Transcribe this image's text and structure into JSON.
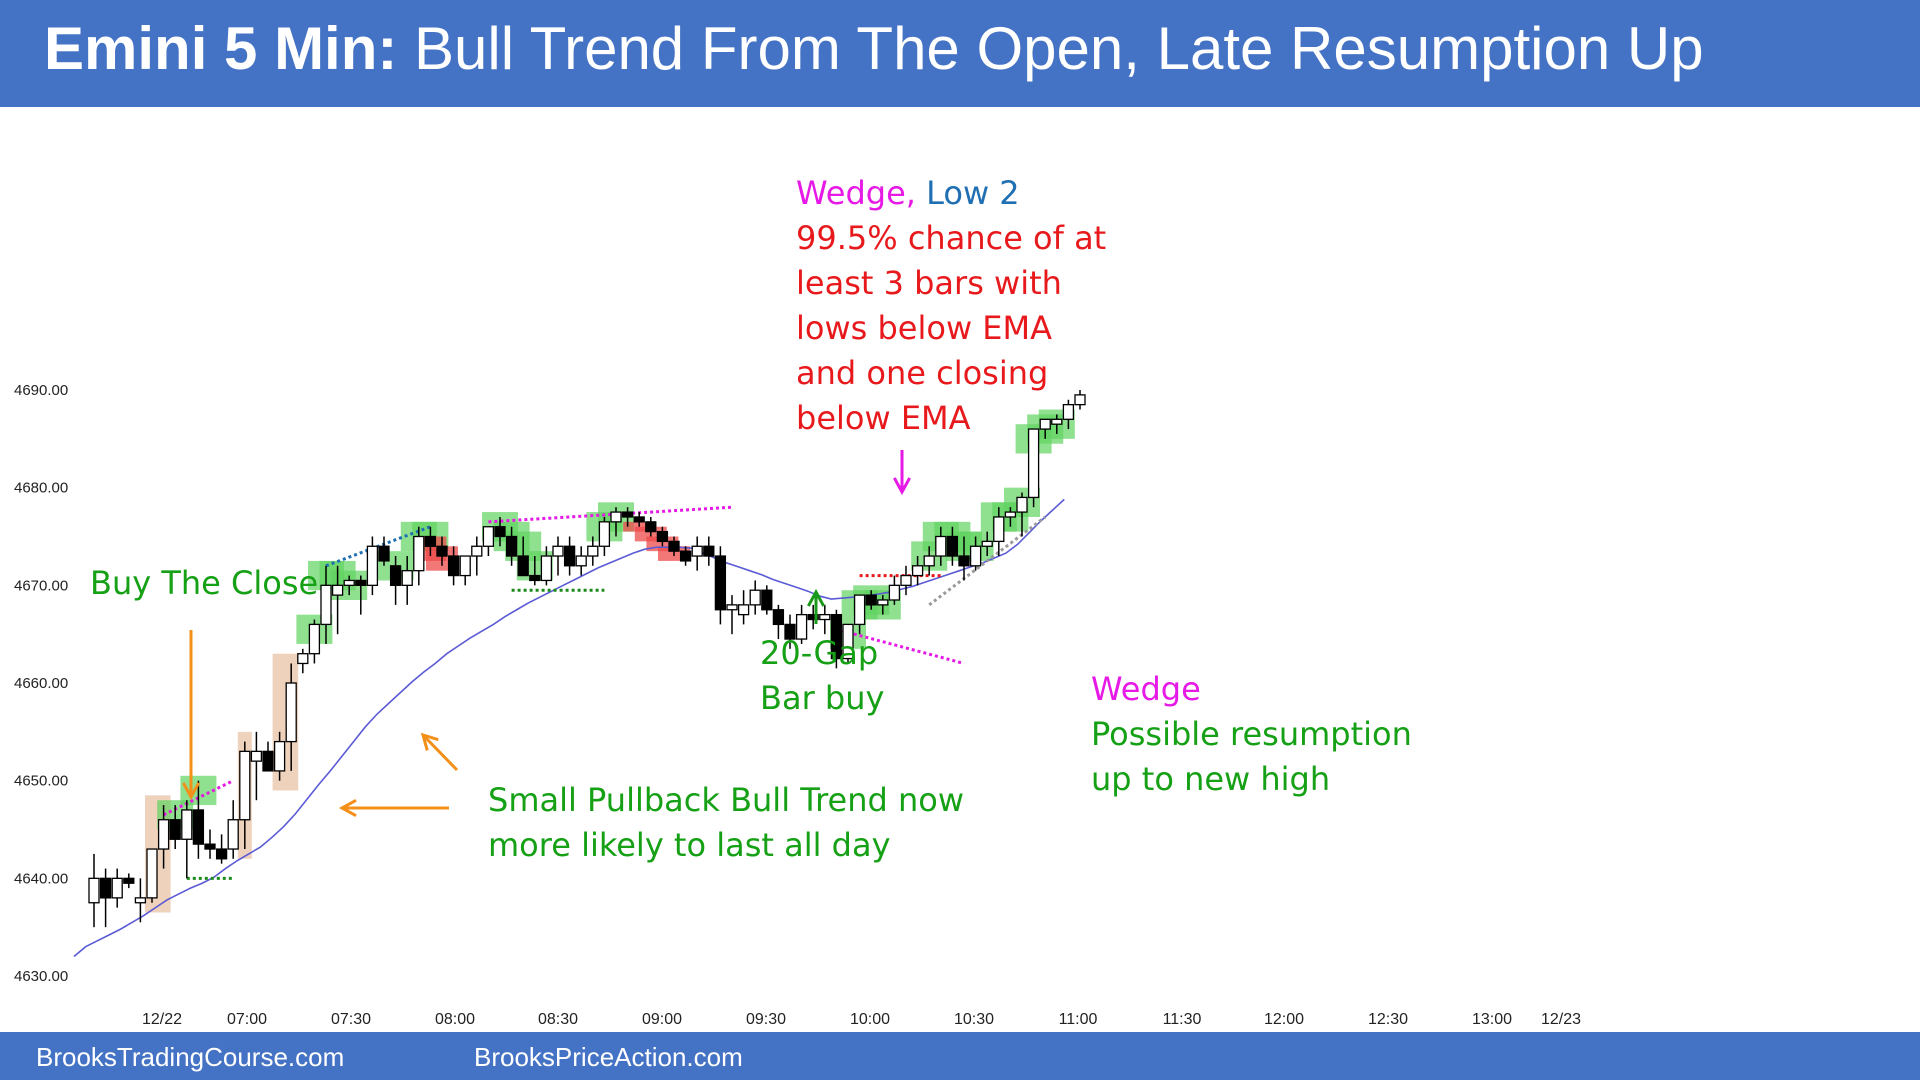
{
  "header": {
    "title_bold": "Emini 5 Min:",
    "title_rest": " Bull Trend From The Open, Late Resumption Up",
    "bg_color": "#4472c4"
  },
  "footer": {
    "left": "BrooksTradingCourse.com",
    "right": "BrooksPriceAction.com"
  },
  "annotations": {
    "buy_close": "Buy The Close",
    "wedge_top_a": "Wedge,",
    "wedge_top_b": "Low 2",
    "prob_lines": [
      "99.5% chance of at",
      "least 3 bars with",
      "lows below EMA",
      "and one closing",
      "below EMA"
    ],
    "gap_lines": [
      "20-Gap",
      "Bar buy"
    ],
    "spbt_lines": [
      "Small Pullback Bull Trend now",
      "more likely to last all day"
    ],
    "wedge_low": "Wedge",
    "resume_lines": [
      "Possible  resumption",
      "up to new high"
    ]
  },
  "chart_data": {
    "type": "candlestick",
    "y_ticks": [
      "4630.00",
      "4640.00",
      "4650.00",
      "4660.00",
      "4670.00",
      "4680.00",
      "4690.00"
    ],
    "x_ticks": [
      "12/22",
      "07:00",
      "07:30",
      "08:00",
      "08:30",
      "09:00",
      "09:30",
      "10:00",
      "10:30",
      "11:00",
      "11:30",
      "12:00",
      "12:30",
      "13:00",
      "12/23"
    ],
    "ylim": [
      4630,
      4690
    ],
    "bars": [
      {
        "o": 4637.5,
        "h": 4642.5,
        "l": 4635,
        "c": 4640
      },
      {
        "o": 4640,
        "h": 4641,
        "l": 4635,
        "c": 4638
      },
      {
        "o": 4638,
        "h": 4641,
        "l": 4637,
        "c": 4640
      },
      {
        "o": 4640,
        "h": 4640.5,
        "l": 4639,
        "c": 4639.5
      },
      {
        "o": 4637.5,
        "h": 4640,
        "l": 4635.5,
        "c": 4638
      },
      {
        "o": 4638,
        "h": 4643,
        "l": 4637.5,
        "c": 4643
      },
      {
        "o": 4643,
        "h": 4647.5,
        "l": 4641,
        "c": 4646
      },
      {
        "o": 4646,
        "h": 4647.5,
        "l": 4643,
        "c": 4644
      },
      {
        "o": 4644,
        "h": 4648,
        "l": 4640,
        "c": 4647
      },
      {
        "o": 4647,
        "h": 4650,
        "l": 4642,
        "c": 4643.5
      },
      {
        "o": 4643.5,
        "h": 4645,
        "l": 4642,
        "c": 4643
      },
      {
        "o": 4643,
        "h": 4644.5,
        "l": 4641.5,
        "c": 4642
      },
      {
        "o": 4643,
        "h": 4648,
        "l": 4642,
        "c": 4646
      },
      {
        "o": 4646,
        "h": 4654,
        "l": 4643,
        "c": 4653
      },
      {
        "o": 4652,
        "h": 4655,
        "l": 4648,
        "c": 4653
      },
      {
        "o": 4653,
        "h": 4654,
        "l": 4651,
        "c": 4651
      },
      {
        "o": 4651,
        "h": 4655,
        "l": 4650,
        "c": 4654
      },
      {
        "o": 4654,
        "h": 4662,
        "l": 4651,
        "c": 4660
      },
      {
        "o": 4662,
        "h": 4663.5,
        "l": 4661,
        "c": 4663
      },
      {
        "o": 4663,
        "h": 4666.5,
        "l": 4662,
        "c": 4666
      },
      {
        "o": 4666,
        "h": 4672,
        "l": 4664,
        "c": 4670
      },
      {
        "o": 4669,
        "h": 4672,
        "l": 4665,
        "c": 4670
      },
      {
        "o": 4670,
        "h": 4671,
        "l": 4669,
        "c": 4670.5
      },
      {
        "o": 4670.5,
        "h": 4671,
        "l": 4667,
        "c": 4670
      },
      {
        "o": 4670,
        "h": 4675,
        "l": 4669,
        "c": 4674
      },
      {
        "o": 4674,
        "h": 4675,
        "l": 4672,
        "c": 4672.5
      },
      {
        "o": 4672,
        "h": 4673,
        "l": 4668,
        "c": 4670
      },
      {
        "o": 4670,
        "h": 4673,
        "l": 4668,
        "c": 4671.5
      },
      {
        "o": 4671.5,
        "h": 4676,
        "l": 4670,
        "c": 4675
      },
      {
        "o": 4675,
        "h": 4676,
        "l": 4673,
        "c": 4674
      },
      {
        "o": 4674,
        "h": 4675,
        "l": 4672,
        "c": 4673
      },
      {
        "o": 4673,
        "h": 4674,
        "l": 4670,
        "c": 4671
      },
      {
        "o": 4671,
        "h": 4673,
        "l": 4670,
        "c": 4673
      },
      {
        "o": 4673,
        "h": 4675,
        "l": 4671,
        "c": 4674
      },
      {
        "o": 4674,
        "h": 4676,
        "l": 4673,
        "c": 4676
      },
      {
        "o": 4676,
        "h": 4677,
        "l": 4674,
        "c": 4675
      },
      {
        "o": 4675,
        "h": 4676,
        "l": 4672,
        "c": 4673
      },
      {
        "o": 4673,
        "h": 4675,
        "l": 4671,
        "c": 4671
      },
      {
        "o": 4671,
        "h": 4673,
        "l": 4670,
        "c": 4670.5
      },
      {
        "o": 4670.5,
        "h": 4674,
        "l": 4670,
        "c": 4673
      },
      {
        "o": 4673,
        "h": 4675,
        "l": 4671,
        "c": 4674
      },
      {
        "o": 4674,
        "h": 4675,
        "l": 4671,
        "c": 4672
      },
      {
        "o": 4672,
        "h": 4674,
        "l": 4671,
        "c": 4673
      },
      {
        "o": 4673,
        "h": 4675,
        "l": 4672,
        "c": 4674
      },
      {
        "o": 4674,
        "h": 4677,
        "l": 4673,
        "c": 4676.5
      },
      {
        "o": 4676.5,
        "h": 4678,
        "l": 4675,
        "c": 4677.5
      },
      {
        "o": 4677.5,
        "h": 4678,
        "l": 4676,
        "c": 4677
      },
      {
        "o": 4677,
        "h": 4677.5,
        "l": 4676,
        "c": 4676.5
      },
      {
        "o": 4676.5,
        "h": 4677,
        "l": 4675,
        "c": 4675.5
      },
      {
        "o": 4675.5,
        "h": 4676,
        "l": 4674,
        "c": 4674.5
      },
      {
        "o": 4674.5,
        "h": 4675,
        "l": 4673,
        "c": 4673.5
      },
      {
        "o": 4673.5,
        "h": 4674,
        "l": 4672,
        "c": 4672.5
      },
      {
        "o": 4673,
        "h": 4675,
        "l": 4671.5,
        "c": 4674
      },
      {
        "o": 4674,
        "h": 4675,
        "l": 4672,
        "c": 4673
      },
      {
        "o": 4673,
        "h": 4674,
        "l": 4666,
        "c": 4667.5
      },
      {
        "o": 4667.5,
        "h": 4669,
        "l": 4665,
        "c": 4668
      },
      {
        "o": 4667,
        "h": 4669.5,
        "l": 4666,
        "c": 4668
      },
      {
        "o": 4668,
        "h": 4670.5,
        "l": 4667,
        "c": 4669.5
      },
      {
        "o": 4669.5,
        "h": 4670,
        "l": 4667,
        "c": 4667.5
      },
      {
        "o": 4667.5,
        "h": 4668,
        "l": 4664.5,
        "c": 4666
      },
      {
        "o": 4666,
        "h": 4667,
        "l": 4663.5,
        "c": 4664.5
      },
      {
        "o": 4664.5,
        "h": 4668,
        "l": 4664,
        "c": 4667
      },
      {
        "o": 4667,
        "h": 4668,
        "l": 4665.5,
        "c": 4666.5
      },
      {
        "o": 4666.5,
        "h": 4668,
        "l": 4665,
        "c": 4667
      },
      {
        "o": 4667,
        "h": 4667.5,
        "l": 4661.5,
        "c": 4662.5
      },
      {
        "o": 4662.5,
        "h": 4666,
        "l": 4662,
        "c": 4666
      },
      {
        "o": 4666,
        "h": 4669,
        "l": 4665,
        "c": 4669
      },
      {
        "o": 4669,
        "h": 4669.5,
        "l": 4667.5,
        "c": 4668
      },
      {
        "o": 4668,
        "h": 4669,
        "l": 4667,
        "c": 4668.5
      },
      {
        "o": 4668.5,
        "h": 4671,
        "l": 4668,
        "c": 4670
      },
      {
        "o": 4670,
        "h": 4672,
        "l": 4669,
        "c": 4671
      },
      {
        "o": 4671,
        "h": 4673,
        "l": 4670,
        "c": 4672
      },
      {
        "o": 4672,
        "h": 4674,
        "l": 4671,
        "c": 4673
      },
      {
        "o": 4673,
        "h": 4676,
        "l": 4672,
        "c": 4675
      },
      {
        "o": 4675,
        "h": 4676,
        "l": 4672,
        "c": 4673
      },
      {
        "o": 4673,
        "h": 4675,
        "l": 4670.5,
        "c": 4672
      },
      {
        "o": 4672,
        "h": 4675,
        "l": 4671.5,
        "c": 4674
      },
      {
        "o": 4674,
        "h": 4675.5,
        "l": 4673,
        "c": 4674.5
      },
      {
        "o": 4674.5,
        "h": 4678,
        "l": 4673,
        "c": 4677
      },
      {
        "o": 4677,
        "h": 4678,
        "l": 4676,
        "c": 4677.5
      },
      {
        "o": 4677.5,
        "h": 4679.5,
        "l": 4675,
        "c": 4679
      },
      {
        "o": 4679,
        "h": 4686,
        "l": 4678,
        "c": 4686
      },
      {
        "o": 4686,
        "h": 4687,
        "l": 4685,
        "c": 4687
      },
      {
        "o": 4686.5,
        "h": 4687.5,
        "l": 4685.5,
        "c": 4687
      },
      {
        "o": 4687,
        "h": 4689,
        "l": 4686,
        "c": 4688.5
      },
      {
        "o": 4688.5,
        "h": 4690,
        "l": 4688,
        "c": 4689.5
      }
    ],
    "ema": [
      4632,
      4633,
      4633.6,
      4634.2,
      4634.8,
      4635.5,
      4636.2,
      4637,
      4637.8,
      4638.4,
      4639,
      4639.5,
      4640.1,
      4641,
      4641.8,
      4642.5,
      4643.2,
      4644.2,
      4645.3,
      4646.6,
      4648.1,
      4649.6,
      4651,
      4652.5,
      4654,
      4655.5,
      4656.8,
      4657.9,
      4659,
      4660.1,
      4661.1,
      4662,
      4663,
      4663.8,
      4664.6,
      4665.3,
      4666,
      4666.8,
      4667.5,
      4668.2,
      4668.8,
      4669.4,
      4670,
      4670.6,
      4671.2,
      4671.8,
      4672.3,
      4672.8,
      4673.3,
      4673.7,
      4673.9,
      4673.9,
      4673.9,
      4673.8,
      4673.3,
      4672.8,
      4672.3,
      4671.9,
      4671.5,
      4671.1,
      4670.6,
      4670.2,
      4669.8,
      4669.4,
      4668.9,
      4668.6,
      4668.7,
      4668.8,
      4668.9,
      4669.1,
      4669.3,
      4669.6,
      4669.9,
      4670.3,
      4670.7,
      4671.1,
      4671.5,
      4671.9,
      4672.3,
      4672.8,
      4673.3,
      4674.2,
      4675.4,
      4676.6,
      4677.7,
      4678.8
    ],
    "signal_bars_green": [
      7,
      9,
      19,
      20,
      21,
      22,
      26,
      28,
      29,
      35,
      36,
      37,
      38,
      44,
      45,
      65,
      66,
      67,
      68,
      72,
      73,
      74,
      75,
      76,
      78,
      79,
      80,
      81,
      82,
      83
    ],
    "signal_bars_red": [
      29,
      30,
      47,
      48,
      49,
      50
    ],
    "colors": {
      "bull": "#ffffff",
      "bear": "#000000",
      "ema": "#5b5bd6",
      "green_zone": "#5fd35f",
      "red_zone": "#ee4a4a",
      "tan_zone": "#e8c3a5",
      "orange": "#f39019"
    }
  }
}
